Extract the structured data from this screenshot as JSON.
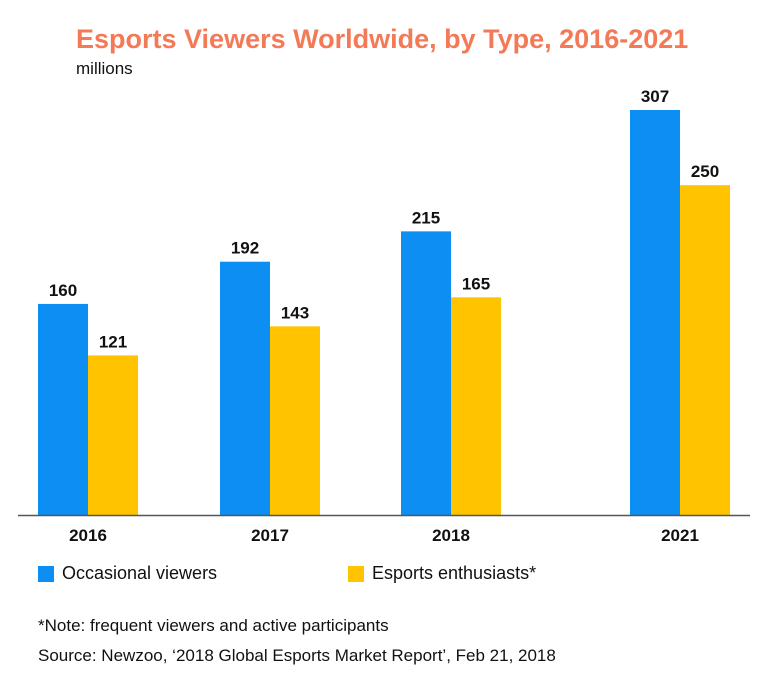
{
  "chart_data": {
    "type": "bar",
    "title": "Esports Viewers Worldwide, by Type, 2016-2021",
    "subtitle": "millions",
    "categories": [
      "2016",
      "2017",
      "2018",
      "2021"
    ],
    "series": [
      {
        "name": "Occasional viewers",
        "values": [
          160,
          192,
          215,
          307
        ],
        "color": "#0C8EF3"
      },
      {
        "name": "Esports enthusiasts*",
        "values": [
          121,
          143,
          165,
          250
        ],
        "color": "#FFC300"
      }
    ],
    "ylim": [
      0,
      307
    ],
    "grid": false,
    "legend": "bottom-left",
    "note": "*Note: frequent viewers and active participants",
    "source": "Source: Newzoo, ‘2018 Global Esports Market Report’, Feb 21, 2018"
  }
}
